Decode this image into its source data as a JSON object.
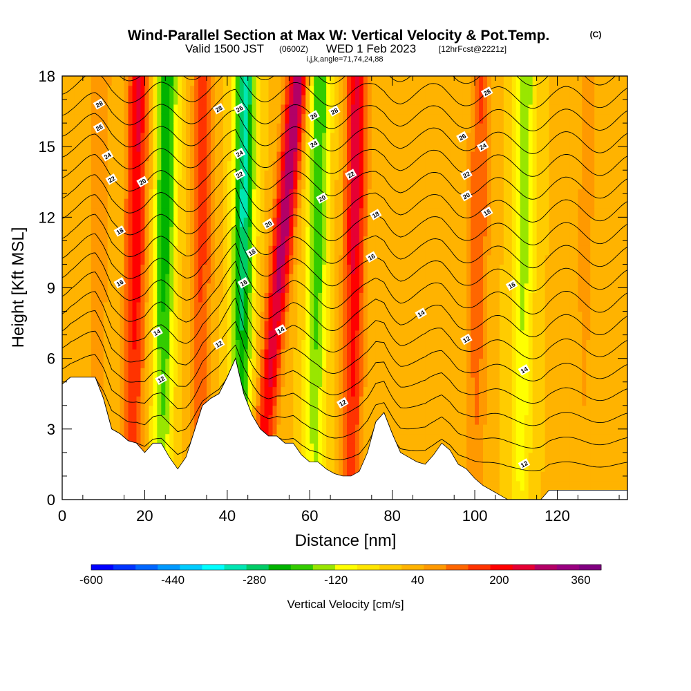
{
  "title": {
    "main": "Wind-Parallel Section at Max W: Vertical Velocity & Pot.Temp.",
    "copyright": "(C)",
    "valid_prefix": "Valid 1500 JST",
    "valid_utc": "(0600Z)",
    "valid_date": "WED 1 Feb 2023",
    "fcst": "[12hrFcst@2221z]",
    "indices": "i,j,k,angle=71,74,24,88"
  },
  "chart_data": {
    "type": "heatmap",
    "xlabel": "Distance [nm]",
    "ylabel": "Height [Kft MSL]",
    "xlim": [
      0,
      137
    ],
    "ylim": [
      0,
      18
    ],
    "x_ticks": [
      0,
      20,
      40,
      60,
      80,
      100,
      120
    ],
    "y_ticks": [
      0,
      3,
      6,
      9,
      12,
      15,
      18
    ],
    "colorbar": {
      "label": "Vertical Velocity [cm/s]",
      "range": [
        -600,
        400
      ],
      "tick_values": [
        -600,
        -440,
        -280,
        -120,
        40,
        200,
        360
      ],
      "colors": [
        "#0000ff",
        "#0033ff",
        "#0066ff",
        "#0099ff",
        "#00ccff",
        "#00ffff",
        "#00e6b3",
        "#00cc66",
        "#00b300",
        "#33cc00",
        "#99e600",
        "#ffff00",
        "#ffe600",
        "#ffcc00",
        "#ffb300",
        "#ff9900",
        "#ff6600",
        "#ff3300",
        "#ff0000",
        "#e60033",
        "#b30066",
        "#990080",
        "#800080"
      ]
    },
    "w_features": [
      {
        "x": 8,
        "w": 80
      },
      {
        "x": 17,
        "w": 220
      },
      {
        "x": 24,
        "w": -260
      },
      {
        "x": 33,
        "w": 150
      },
      {
        "x": 43,
        "w": -320
      },
      {
        "x": 53,
        "w": 300
      },
      {
        "x": 61,
        "w": -220
      },
      {
        "x": 70,
        "w": 240
      },
      {
        "x": 88,
        "w": 40
      },
      {
        "x": 100,
        "w": 130
      },
      {
        "x": 111,
        "w": -160
      },
      {
        "x": 126,
        "w": 60
      }
    ],
    "theta_isentropes": [
      12,
      13,
      14,
      15,
      16,
      17,
      18,
      19,
      20,
      21,
      22,
      23,
      24,
      25,
      26,
      27,
      28,
      29
    ],
    "contour_labels": [
      {
        "x": 9,
        "y": 16.8,
        "t": "28"
      },
      {
        "x": 9,
        "y": 15.8,
        "t": "26"
      },
      {
        "x": 11,
        "y": 14.6,
        "t": "24"
      },
      {
        "x": 12,
        "y": 13.6,
        "t": "22"
      },
      {
        "x": 19.5,
        "y": 13.5,
        "t": "20"
      },
      {
        "x": 14,
        "y": 11.4,
        "t": "18"
      },
      {
        "x": 14,
        "y": 9.2,
        "t": "16"
      },
      {
        "x": 23,
        "y": 7.1,
        "t": "14"
      },
      {
        "x": 24,
        "y": 5.1,
        "t": "12"
      },
      {
        "x": 38,
        "y": 16.6,
        "t": "28"
      },
      {
        "x": 43,
        "y": 16.6,
        "t": "26"
      },
      {
        "x": 43,
        "y": 14.7,
        "t": "24"
      },
      {
        "x": 43,
        "y": 13.8,
        "t": "22"
      },
      {
        "x": 50,
        "y": 11.7,
        "t": "20"
      },
      {
        "x": 46,
        "y": 10.5,
        "t": "18"
      },
      {
        "x": 44,
        "y": 9.2,
        "t": "16"
      },
      {
        "x": 38,
        "y": 6.6,
        "t": "12"
      },
      {
        "x": 53,
        "y": 7.2,
        "t": "14"
      },
      {
        "x": 61,
        "y": 16.3,
        "t": "26"
      },
      {
        "x": 66,
        "y": 16.5,
        "t": "28"
      },
      {
        "x": 61,
        "y": 15.1,
        "t": "24"
      },
      {
        "x": 70,
        "y": 13.8,
        "t": "22"
      },
      {
        "x": 63,
        "y": 12.8,
        "t": "20"
      },
      {
        "x": 76,
        "y": 12.1,
        "t": "18"
      },
      {
        "x": 75,
        "y": 10.3,
        "t": "16"
      },
      {
        "x": 87,
        "y": 7.9,
        "t": "14"
      },
      {
        "x": 68,
        "y": 4.1,
        "t": "12"
      },
      {
        "x": 103,
        "y": 17.3,
        "t": "28"
      },
      {
        "x": 97,
        "y": 15.4,
        "t": "26"
      },
      {
        "x": 102,
        "y": 15.0,
        "t": "24"
      },
      {
        "x": 98,
        "y": 13.8,
        "t": "22"
      },
      {
        "x": 98,
        "y": 12.9,
        "t": "20"
      },
      {
        "x": 103,
        "y": 12.2,
        "t": "18"
      },
      {
        "x": 109,
        "y": 9.1,
        "t": "16"
      },
      {
        "x": 98,
        "y": 6.8,
        "t": "12"
      },
      {
        "x": 112,
        "y": 5.5,
        "t": "14"
      },
      {
        "x": 112,
        "y": 1.5,
        "t": "12"
      }
    ],
    "terrain": [
      [
        0,
        4.9
      ],
      [
        2,
        5.2
      ],
      [
        8,
        5.2
      ],
      [
        10,
        4.3
      ],
      [
        12,
        3.0
      ],
      [
        14,
        2.8
      ],
      [
        16,
        2.5
      ],
      [
        18,
        2.4
      ],
      [
        20,
        2.0
      ],
      [
        22,
        2.4
      ],
      [
        24,
        2.4
      ],
      [
        26,
        1.8
      ],
      [
        28,
        1.3
      ],
      [
        30,
        1.8
      ],
      [
        32,
        2.9
      ],
      [
        34,
        4.0
      ],
      [
        36,
        4.3
      ],
      [
        38,
        4.5
      ],
      [
        40,
        5.2
      ],
      [
        42,
        6.0
      ],
      [
        44,
        4.5
      ],
      [
        46,
        3.6
      ],
      [
        48,
        3.0
      ],
      [
        50,
        2.7
      ],
      [
        52,
        2.7
      ],
      [
        54,
        2.4
      ],
      [
        56,
        2.4
      ],
      [
        58,
        1.9
      ],
      [
        60,
        1.6
      ],
      [
        62,
        1.6
      ],
      [
        64,
        1.3
      ],
      [
        66,
        1.1
      ],
      [
        68,
        1.0
      ],
      [
        70,
        1.0
      ],
      [
        72,
        1.2
      ],
      [
        74,
        2.0
      ],
      [
        76,
        3.3
      ],
      [
        78,
        3.7
      ],
      [
        80,
        2.8
      ],
      [
        82,
        2.0
      ],
      [
        84,
        1.8
      ],
      [
        86,
        1.6
      ],
      [
        88,
        1.5
      ],
      [
        90,
        1.9
      ],
      [
        92,
        2.4
      ],
      [
        94,
        2.1
      ],
      [
        96,
        1.5
      ],
      [
        98,
        1.3
      ],
      [
        100,
        0.9
      ],
      [
        102,
        0.6
      ],
      [
        104,
        0.4
      ],
      [
        106,
        0.2
      ],
      [
        108,
        0.0
      ],
      [
        116,
        0.0
      ],
      [
        118,
        0.4
      ],
      [
        120,
        0.4
      ],
      [
        137,
        0.4
      ]
    ]
  }
}
